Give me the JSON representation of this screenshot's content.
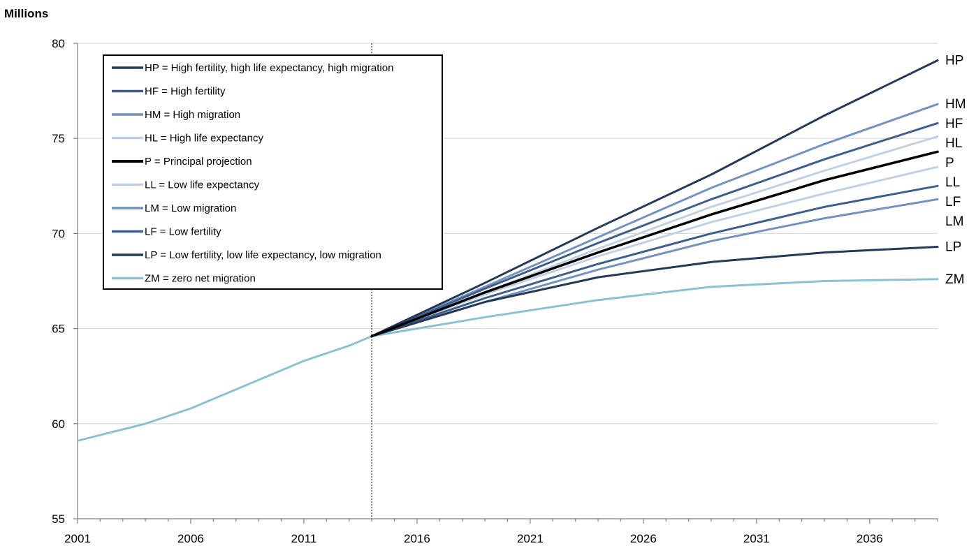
{
  "chart_data": {
    "type": "line",
    "unit_label": "Millions",
    "xlim": [
      2001,
      2039
    ],
    "ylim": [
      55,
      80
    ],
    "x_ticks": [
      2001,
      2006,
      2011,
      2016,
      2021,
      2026,
      2031,
      2036
    ],
    "x_tick_labels": [
      "2001",
      "2006",
      "2011",
      "2016",
      "2021",
      "2026",
      "2031",
      "2036"
    ],
    "y_ticks": [
      55,
      60,
      65,
      70,
      75,
      80
    ],
    "y_tick_labels": [
      "55",
      "60",
      "65",
      "70",
      "75",
      "80"
    ],
    "grid": "horizontal",
    "legend_placement": "top-left",
    "projection_start_year": 2014,
    "history": {
      "color": "#8bc2d3",
      "x": [
        2001,
        2002,
        2003,
        2004,
        2005,
        2006,
        2007,
        2008,
        2009,
        2010,
        2011,
        2012,
        2013,
        2014
      ],
      "y": [
        59.1,
        59.4,
        59.7,
        60.0,
        60.4,
        60.8,
        61.3,
        61.8,
        62.3,
        62.8,
        63.3,
        63.7,
        64.1,
        64.6
      ]
    },
    "projection_x": [
      2014,
      2019,
      2024,
      2029,
      2034,
      2039
    ],
    "series": [
      {
        "name": "HP = High fertility, high life expectancy, high migration",
        "end_label": "HP",
        "color": "#243a57",
        "width": 3,
        "y": [
          64.6,
          67.4,
          70.3,
          73.1,
          76.2,
          79.1
        ]
      },
      {
        "name": "HF = High fertility",
        "end_label": "HF",
        "color": "#3d5f8e",
        "width": 3,
        "y": [
          64.6,
          67.1,
          69.5,
          71.8,
          73.9,
          75.8
        ]
      },
      {
        "name": "HM = High migration",
        "end_label": "HM",
        "color": "#7393be",
        "width": 3,
        "y": [
          64.6,
          67.2,
          69.8,
          72.4,
          74.7,
          76.8
        ]
      },
      {
        "name": "HL = High life expectancy",
        "end_label": "HL",
        "color": "#c1d0e3",
        "width": 3,
        "y": [
          64.6,
          66.9,
          69.2,
          71.4,
          73.3,
          75.1
        ]
      },
      {
        "name": "P = Principal projection",
        "end_label": "P",
        "color": "#000000",
        "width": 3.5,
        "y": [
          64.6,
          66.9,
          69.0,
          71.0,
          72.8,
          74.3
        ]
      },
      {
        "name": "LL = Low life expectancy",
        "end_label": "LL",
        "color": "#c1d0e3",
        "width": 3,
        "y": [
          64.6,
          66.8,
          68.8,
          70.6,
          72.1,
          73.5
        ]
      },
      {
        "name": "LM = Low migration",
        "end_label": "LM",
        "color": "#7393be",
        "width": 3,
        "y": [
          64.6,
          66.4,
          68.1,
          69.6,
          70.8,
          71.8
        ]
      },
      {
        "name": "LF = Low fertility",
        "end_label": "LF",
        "color": "#3d5f8e",
        "width": 3,
        "y": [
          64.6,
          66.6,
          68.4,
          70.0,
          71.4,
          72.5
        ]
      },
      {
        "name": "LP = Low fertility, low life expectancy, low migration",
        "end_label": "LP",
        "color": "#243a57",
        "width": 3,
        "y": [
          64.6,
          66.4,
          67.7,
          68.5,
          69.0,
          69.3
        ]
      },
      {
        "name": "ZM = zero net migration",
        "end_label": "ZM",
        "color": "#8bc2d3",
        "width": 3,
        "y": [
          64.6,
          65.6,
          66.5,
          67.2,
          67.5,
          67.6
        ]
      }
    ]
  }
}
